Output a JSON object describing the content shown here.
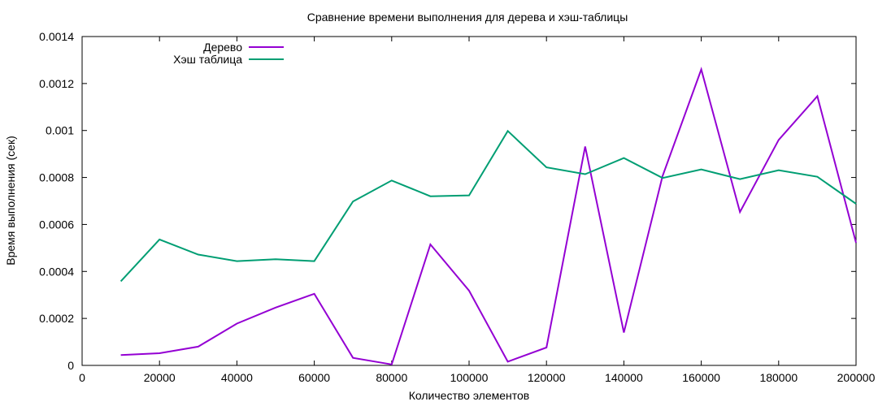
{
  "chart_data": {
    "type": "line",
    "title": "Сравнение времени выполнения для дерева и хэш-таблицы",
    "xlabel": "Количество элементов",
    "ylabel": "Время выполнения (сек)",
    "xlim": [
      0,
      200000
    ],
    "ylim": [
      0,
      0.0014
    ],
    "xticks": [
      0,
      20000,
      40000,
      60000,
      80000,
      100000,
      120000,
      140000,
      160000,
      180000,
      200000
    ],
    "yticks": [
      0,
      0.0002,
      0.0004,
      0.0006,
      0.0008,
      0.001,
      0.0012,
      0.0014
    ],
    "xtick_labels": [
      "0",
      "20000",
      "40000",
      "60000",
      "80000",
      "100000",
      "120000",
      "140000",
      "160000",
      "180000",
      "200000"
    ],
    "ytick_labels": [
      "0",
      "0.0002",
      "0.0004",
      "0.0006",
      "0.0008",
      "0.001",
      "0.0012",
      "0.0014"
    ],
    "grid": false,
    "legend_position": "top-left",
    "x": [
      10000,
      20000,
      30000,
      40000,
      50000,
      60000,
      70000,
      80000,
      90000,
      100000,
      110000,
      120000,
      130000,
      140000,
      150000,
      160000,
      170000,
      180000,
      190000,
      200000
    ],
    "series": [
      {
        "name": "Дерево",
        "color": "#9400d3",
        "values": [
          4.4e-05,
          5.2e-05,
          8e-05,
          0.000178,
          0.000246,
          0.000305,
          3.2e-05,
          4e-06,
          0.000515,
          0.000318,
          1.6e-05,
          7.6e-05,
          0.000932,
          0.00014,
          0.000806,
          0.00126,
          0.000653,
          0.00096,
          0.001146,
          0.000522
        ]
      },
      {
        "name": "Хэш таблица",
        "color": "#009e73",
        "values": [
          0.000358,
          0.000536,
          0.000472,
          0.000444,
          0.000452,
          0.000444,
          0.000698,
          0.000787,
          0.00072,
          0.000724,
          0.000998,
          0.000843,
          0.000814,
          0.000883,
          0.000798,
          0.000834,
          0.000793,
          0.000831,
          0.000803,
          0.000688
        ]
      }
    ]
  }
}
